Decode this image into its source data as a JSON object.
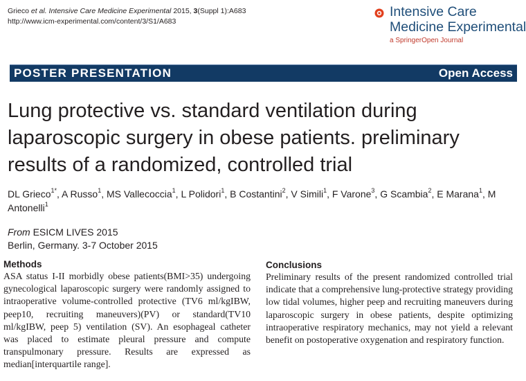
{
  "citation": {
    "authors": "Grieco",
    "etal": "et al.",
    "journal": "Intensive Care Medicine Experimental",
    "year": "2015,",
    "volume": "3",
    "supplement": "(Suppl 1):A683",
    "url": "http://www.icm-experimental.com/content/3/S1/A683"
  },
  "brand": {
    "name_line1": "Intensive Care",
    "name_line2": "Medicine Experimental",
    "subtitle": "a SpringerOpen Journal",
    "logo_color": "#e2401d",
    "name_color": "#1f4e79"
  },
  "banner": {
    "section": "POSTER PRESENTATION",
    "access": "Open Access",
    "color": "#123a64"
  },
  "title": "Lung protective vs. standard ventilation during laparoscopic surgery in obese patients. preliminary results of a randomized, controlled trial",
  "authors": [
    {
      "name": "DL Grieco",
      "sup": "1*"
    },
    {
      "name": "A Russo",
      "sup": "1"
    },
    {
      "name": "MS Vallecoccia",
      "sup": "1"
    },
    {
      "name": "L Polidori",
      "sup": "1"
    },
    {
      "name": "B Costantini",
      "sup": "2"
    },
    {
      "name": "V Simili",
      "sup": "1"
    },
    {
      "name": "F Varone",
      "sup": "3"
    },
    {
      "name": "G Scambia",
      "sup": "2"
    },
    {
      "name": "E Marana",
      "sup": "1"
    },
    {
      "name": "M Antonelli",
      "sup": "1"
    }
  ],
  "source": {
    "from": "From",
    "event": "ESICM LIVES 2015",
    "location": "Berlin, Germany. 3-7 October 2015"
  },
  "methods": {
    "heading": "Methods",
    "text": "ASA status I-II morbidly obese patients(BMI>35) undergoing gynecological laparoscopic surgery were randomly assigned to intraoperative volume-controlled protective (TV6 ml/kgIBW, peep10, recruiting maneuvers)(PV) or standard(TV10 ml/kgIBW, peep 5) ventilation (SV). An esophageal catheter was placed to estimate pleural pressure and compute transpulmonary pressure. Results are expressed as median[interquartile range]."
  },
  "conclusions": {
    "heading": "Conclusions",
    "text": "Preliminary results of the present randomized controlled trial indicate that a comprehensive lung-protective strategy providing low tidal volumes, higher peep and recruiting maneuvers during laparoscopic surgery in obese patients, despite optimizing intraoperative respiratory mechanics, may not yield a relevant benefit on postoperative oxygenation and respiratory function."
  }
}
